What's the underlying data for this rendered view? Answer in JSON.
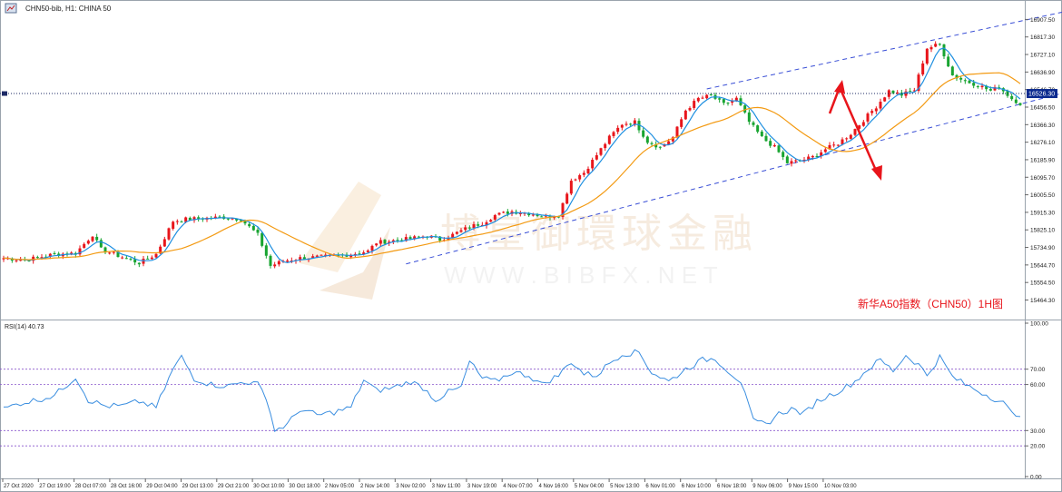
{
  "window": {
    "title": "CHN50-bib, H1: CHINA 50",
    "icon": "chart-window-icon"
  },
  "annotation": "新华A50指数（CHN50）1H图",
  "watermark": {
    "title": "博皇御環球金融",
    "url": "W W W . B I B F X . N E T"
  },
  "colors": {
    "bull": "#e8151b",
    "bear": "#18a431",
    "ma_fast": "#1e8fe0",
    "ma_slow": "#f39a12",
    "channel": "#3a4fd6",
    "arrow": "#e8151b",
    "rsi_line": "#3a8ee0",
    "rsi_levels": "#8855cc",
    "price_label_bg": "#0b2a8f"
  },
  "price_axis": {
    "ticks": [
      "16907.50",
      "16817.30",
      "16727.10",
      "16636.90",
      "16546.70",
      "16456.50",
      "16366.30",
      "16276.10",
      "16185.90",
      "16095.70",
      "16005.50",
      "15915.30",
      "15825.10",
      "15734.90",
      "15644.70",
      "15554.50",
      "15464.30"
    ],
    "current_price": "16526.30"
  },
  "rsi": {
    "label": "RSI(14) 40.73",
    "ticks": [
      "100.00",
      "70.00",
      "60.00",
      "30.00",
      "20.00",
      "0.00"
    ]
  },
  "time_axis": {
    "labels": [
      "27 Oct 2020",
      "27 Oct 19:00",
      "28 Oct 07:00",
      "28 Oct 16:00",
      "29 Oct 04:00",
      "29 Oct 13:00",
      "29 Oct 21:00",
      "30 Oct 10:00",
      "30 Oct 18:00",
      "2 Nov 05:00",
      "2 Nov 14:00",
      "3 Nov 02:00",
      "3 Nov 11:00",
      "3 Nov 19:00",
      "4 Nov 07:00",
      "4 Nov 16:00",
      "5 Nov 04:00",
      "5 Nov 13:00",
      "6 Nov 01:00",
      "6 Nov 10:00",
      "6 Nov 18:00",
      "9 Nov 06:00",
      "9 Nov 15:00",
      "10 Nov 03:00"
    ]
  },
  "chart_data": {
    "type": "candlestick",
    "symbol": "CHN50",
    "timeframe": "H1",
    "ylim": [
      15420,
      16970
    ],
    "rsi_ylim": [
      0,
      100
    ],
    "rsi_levels": [
      70,
      60,
      30,
      20
    ],
    "anchors": [
      [
        0,
        15680
      ],
      [
        5,
        15670
      ],
      [
        12,
        15700
      ],
      [
        17,
        15705
      ],
      [
        21,
        15800
      ],
      [
        23,
        15725
      ],
      [
        28,
        15685
      ],
      [
        32,
        15655
      ],
      [
        36,
        15700
      ],
      [
        40,
        15870
      ],
      [
        43,
        15880
      ],
      [
        48,
        15885
      ],
      [
        52,
        15890
      ],
      [
        56,
        15880
      ],
      [
        60,
        15800
      ],
      [
        63,
        15640
      ],
      [
        66,
        15665
      ],
      [
        70,
        15680
      ],
      [
        74,
        15685
      ],
      [
        78,
        15690
      ],
      [
        82,
        15700
      ],
      [
        86,
        15715
      ],
      [
        88,
        15760
      ],
      [
        92,
        15770
      ],
      [
        96,
        15780
      ],
      [
        100,
        15795
      ],
      [
        103,
        15775
      ],
      [
        106,
        15800
      ],
      [
        110,
        15840
      ],
      [
        113,
        15860
      ],
      [
        116,
        15900
      ],
      [
        120,
        15920
      ],
      [
        124,
        15910
      ],
      [
        128,
        15895
      ],
      [
        131,
        15900
      ],
      [
        134,
        16080
      ],
      [
        137,
        16120
      ],
      [
        140,
        16210
      ],
      [
        143,
        16300
      ],
      [
        146,
        16370
      ],
      [
        149,
        16380
      ],
      [
        152,
        16280
      ],
      [
        155,
        16250
      ],
      [
        158,
        16300
      ],
      [
        161,
        16440
      ],
      [
        164,
        16500
      ],
      [
        167,
        16515
      ],
      [
        170,
        16470
      ],
      [
        173,
        16500
      ],
      [
        176,
        16380
      ],
      [
        179,
        16300
      ],
      [
        182,
        16250
      ],
      [
        185,
        16170
      ],
      [
        188,
        16180
      ],
      [
        191,
        16200
      ],
      [
        194,
        16240
      ],
      [
        197,
        16270
      ],
      [
        200,
        16320
      ],
      [
        203,
        16390
      ],
      [
        206,
        16460
      ],
      [
        209,
        16540
      ],
      [
        212,
        16520
      ],
      [
        215,
        16545
      ],
      [
        218,
        16760
      ],
      [
        221,
        16780
      ],
      [
        224,
        16620
      ],
      [
        227,
        16590
      ],
      [
        230,
        16570
      ],
      [
        233,
        16540
      ],
      [
        235,
        16560
      ],
      [
        238,
        16500
      ],
      [
        240,
        16475
      ]
    ],
    "rsi_anchors": [
      [
        0,
        44
      ],
      [
        4,
        48
      ],
      [
        8,
        50
      ],
      [
        12,
        53
      ],
      [
        15,
        60
      ],
      [
        17,
        65
      ],
      [
        20,
        50
      ],
      [
        24,
        46
      ],
      [
        28,
        46
      ],
      [
        32,
        49
      ],
      [
        36,
        45
      ],
      [
        40,
        70
      ],
      [
        42,
        78
      ],
      [
        45,
        64
      ],
      [
        49,
        60
      ],
      [
        53,
        59
      ],
      [
        57,
        62
      ],
      [
        60,
        60
      ],
      [
        62,
        52
      ],
      [
        64,
        30
      ],
      [
        67,
        34
      ],
      [
        70,
        44
      ],
      [
        74,
        40
      ],
      [
        78,
        42
      ],
      [
        82,
        45
      ],
      [
        85,
        63
      ],
      [
        88,
        56
      ],
      [
        92,
        58
      ],
      [
        96,
        62
      ],
      [
        99,
        58
      ],
      [
        102,
        50
      ],
      [
        105,
        55
      ],
      [
        108,
        58
      ],
      [
        110,
        75
      ],
      [
        113,
        64
      ],
      [
        116,
        62
      ],
      [
        120,
        68
      ],
      [
        124,
        66
      ],
      [
        127,
        60
      ],
      [
        131,
        66
      ],
      [
        134,
        75
      ],
      [
        137,
        67
      ],
      [
        140,
        66
      ],
      [
        143,
        74
      ],
      [
        146,
        80
      ],
      [
        150,
        81
      ],
      [
        153,
        68
      ],
      [
        157,
        62
      ],
      [
        161,
        70
      ],
      [
        165,
        76
      ],
      [
        168,
        77
      ],
      [
        171,
        69
      ],
      [
        174,
        62
      ],
      [
        177,
        36
      ],
      [
        180,
        34
      ],
      [
        183,
        41
      ],
      [
        186,
        44
      ],
      [
        189,
        41
      ],
      [
        192,
        49
      ],
      [
        195,
        53
      ],
      [
        198,
        57
      ],
      [
        201,
        62
      ],
      [
        204,
        70
      ],
      [
        207,
        76
      ],
      [
        210,
        69
      ],
      [
        213,
        79
      ],
      [
        216,
        73
      ],
      [
        218,
        66
      ],
      [
        221,
        78
      ],
      [
        224,
        65
      ],
      [
        227,
        60
      ],
      [
        230,
        56
      ],
      [
        233,
        52
      ],
      [
        236,
        48
      ],
      [
        238,
        41
      ],
      [
        240,
        41
      ]
    ],
    "channel": {
      "upper": [
        [
          166,
          16550
        ],
        [
          251,
          16950
        ]
      ],
      "lower": [
        [
          95,
          15650
        ],
        [
          260,
          16585
        ]
      ]
    },
    "ma_periods": [
      5,
      20
    ],
    "candle_count": 241
  }
}
